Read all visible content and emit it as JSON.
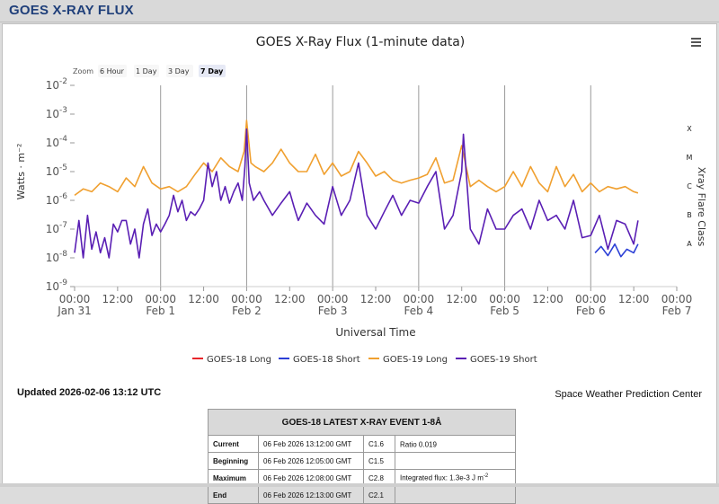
{
  "page": {
    "header_title": "GOES X-RAY FLUX"
  },
  "chart_data": {
    "type": "line",
    "title": "GOES X-Ray Flux (1-minute data)",
    "xlabel": "Universal Time",
    "ylabel": "Watts · m⁻²",
    "y2label": "Xray Flare Class",
    "yscale": "log",
    "ylim": [
      1e-09,
      0.01
    ],
    "xlim": [
      0,
      7
    ],
    "x_unit": "days since 2026-01-31 00:00 UTC",
    "y_ticks": [
      {
        "value": 1e-09,
        "base": "10",
        "exp": "-9"
      },
      {
        "value": 1e-08,
        "base": "10",
        "exp": "-8"
      },
      {
        "value": 1e-07,
        "base": "10",
        "exp": "-7"
      },
      {
        "value": 1e-06,
        "base": "10",
        "exp": "-6"
      },
      {
        "value": 1e-05,
        "base": "10",
        "exp": "-5"
      },
      {
        "value": 0.0001,
        "base": "10",
        "exp": "-4"
      },
      {
        "value": 0.001,
        "base": "10",
        "exp": "-3"
      },
      {
        "value": 0.01,
        "base": "10",
        "exp": "-2"
      }
    ],
    "x_ticks": [
      {
        "x": 0,
        "time": "00:00",
        "date": "Jan 31"
      },
      {
        "x": 0.5,
        "time": "12:00",
        "date": ""
      },
      {
        "x": 1,
        "time": "00:00",
        "date": "Feb 1"
      },
      {
        "x": 1.5,
        "time": "12:00",
        "date": ""
      },
      {
        "x": 2,
        "time": "00:00",
        "date": "Feb 2"
      },
      {
        "x": 2.5,
        "time": "12:00",
        "date": ""
      },
      {
        "x": 3,
        "time": "00:00",
        "date": "Feb 3"
      },
      {
        "x": 3.5,
        "time": "12:00",
        "date": ""
      },
      {
        "x": 4,
        "time": "00:00",
        "date": "Feb 4"
      },
      {
        "x": 4.5,
        "time": "12:00",
        "date": ""
      },
      {
        "x": 5,
        "time": "00:00",
        "date": "Feb 5"
      },
      {
        "x": 5.5,
        "time": "12:00",
        "date": ""
      },
      {
        "x": 6,
        "time": "00:00",
        "date": "Feb 6"
      },
      {
        "x": 6.5,
        "time": "12:00",
        "date": ""
      },
      {
        "x": 7,
        "time": "00:00",
        "date": "Feb 7"
      }
    ],
    "flare_classes": [
      {
        "label": "X",
        "value": 0.000316
      },
      {
        "label": "M",
        "value": 3.16e-05
      },
      {
        "label": "C",
        "value": 3.16e-06
      },
      {
        "label": "B",
        "value": 3.16e-07
      },
      {
        "label": "A",
        "value": 3.16e-08
      }
    ],
    "zoom": {
      "label": "Zoom",
      "options": [
        "6 Hour",
        "1 Day",
        "3 Day",
        "7 Day"
      ],
      "selected": "7 Day"
    },
    "legend_position": "bottom",
    "grid": "vertical-daily",
    "series": [
      {
        "name": "GOES-18 Long",
        "color": "#e8262b",
        "x": [],
        "y": []
      },
      {
        "name": "GOES-18 Short",
        "color": "#2b3fd6",
        "x": [
          6.05,
          6.12,
          6.2,
          6.28,
          6.35,
          6.42,
          6.5,
          6.55
        ],
        "y": [
          1.5e-08,
          2.5e-08,
          1.2e-08,
          3e-08,
          1.1e-08,
          2e-08,
          1.5e-08,
          3e-08
        ]
      },
      {
        "name": "GOES-19 Long",
        "color": "#f0a030",
        "x": [
          0,
          0.1,
          0.2,
          0.3,
          0.4,
          0.5,
          0.6,
          0.7,
          0.8,
          0.9,
          1.0,
          1.1,
          1.2,
          1.3,
          1.4,
          1.5,
          1.6,
          1.7,
          1.8,
          1.9,
          1.97,
          2.0,
          2.05,
          2.1,
          2.2,
          2.3,
          2.4,
          2.5,
          2.6,
          2.7,
          2.8,
          2.9,
          3.0,
          3.1,
          3.2,
          3.3,
          3.4,
          3.5,
          3.6,
          3.7,
          3.8,
          3.9,
          4.0,
          4.1,
          4.2,
          4.3,
          4.4,
          4.5,
          4.6,
          4.7,
          4.8,
          4.9,
          5.0,
          5.1,
          5.2,
          5.3,
          5.4,
          5.5,
          5.6,
          5.7,
          5.8,
          5.9,
          6.0,
          6.1,
          6.2,
          6.3,
          6.4,
          6.5,
          6.55
        ],
        "y": [
          1.5e-06,
          2.5e-06,
          2e-06,
          4e-06,
          3e-06,
          2e-06,
          6e-06,
          3e-06,
          1.5e-05,
          4e-06,
          2.5e-06,
          3e-06,
          2e-06,
          3e-06,
          8e-06,
          2e-05,
          1e-05,
          3e-05,
          1.5e-05,
          1e-05,
          5e-05,
          0.0006,
          2e-05,
          1.5e-05,
          1e-05,
          2e-05,
          6e-05,
          2e-05,
          1e-05,
          1e-05,
          4e-05,
          8e-06,
          2e-05,
          7e-06,
          1e-05,
          5e-05,
          2e-05,
          7e-06,
          1e-05,
          5e-06,
          4e-06,
          5e-06,
          6e-06,
          8e-06,
          3e-05,
          4e-06,
          5e-06,
          8e-05,
          3e-06,
          5e-06,
          3e-06,
          2e-06,
          3e-06,
          1e-05,
          3e-06,
          1.5e-05,
          4e-06,
          2e-06,
          1.5e-05,
          3e-06,
          8e-06,
          2e-06,
          4e-06,
          2e-06,
          3e-06,
          2.5e-06,
          3e-06,
          2e-06,
          1.8e-06
        ]
      },
      {
        "name": "GOES-19 Short",
        "color": "#5a1fb4",
        "x": [
          0,
          0.05,
          0.1,
          0.15,
          0.2,
          0.25,
          0.3,
          0.35,
          0.4,
          0.45,
          0.5,
          0.55,
          0.6,
          0.65,
          0.7,
          0.75,
          0.8,
          0.85,
          0.9,
          0.95,
          1.0,
          1.05,
          1.1,
          1.15,
          1.2,
          1.25,
          1.3,
          1.35,
          1.4,
          1.45,
          1.5,
          1.55,
          1.6,
          1.65,
          1.7,
          1.75,
          1.8,
          1.85,
          1.9,
          1.95,
          1.98,
          2.0,
          2.03,
          2.08,
          2.15,
          2.2,
          2.3,
          2.4,
          2.5,
          2.55,
          2.6,
          2.7,
          2.8,
          2.9,
          3.0,
          3.1,
          3.2,
          3.3,
          3.4,
          3.5,
          3.6,
          3.7,
          3.8,
          3.9,
          4.0,
          4.1,
          4.2,
          4.3,
          4.4,
          4.5,
          4.52,
          4.6,
          4.7,
          4.8,
          4.9,
          5.0,
          5.1,
          5.2,
          5.3,
          5.4,
          5.5,
          5.6,
          5.7,
          5.8,
          5.9,
          6.0,
          6.1,
          6.2,
          6.3,
          6.4,
          6.5,
          6.55
        ],
        "y": [
          1.5e-08,
          2e-07,
          1e-08,
          3e-07,
          2e-08,
          8e-08,
          1.5e-08,
          5e-08,
          1e-08,
          1.5e-07,
          8e-08,
          2e-07,
          2e-07,
          3e-08,
          1e-07,
          1e-08,
          1.5e-07,
          5e-07,
          6e-08,
          1.5e-07,
          8e-08,
          1.5e-07,
          3e-07,
          1.5e-06,
          4e-07,
          1e-06,
          2e-07,
          4e-07,
          3e-07,
          5e-07,
          1e-06,
          2e-05,
          3e-06,
          1e-05,
          1e-06,
          3e-06,
          8e-07,
          2e-06,
          4e-06,
          1e-06,
          1.5e-05,
          0.0003,
          4e-06,
          1e-06,
          2e-06,
          1e-06,
          3e-07,
          8e-07,
          2e-06,
          6e-07,
          2e-07,
          8e-07,
          3e-07,
          1.5e-07,
          3e-06,
          3e-07,
          1e-06,
          2e-05,
          3e-07,
          1e-07,
          4e-07,
          1.5e-06,
          3e-07,
          1e-06,
          8e-07,
          3e-06,
          1e-05,
          1e-07,
          3e-07,
          1e-05,
          0.0002,
          1e-07,
          3e-08,
          5e-07,
          1e-07,
          1e-07,
          3e-07,
          5e-07,
          1e-07,
          1e-06,
          2e-07,
          3e-07,
          1e-07,
          1e-06,
          5e-08,
          6e-08,
          3e-07,
          2e-08,
          2e-07,
          1.5e-07,
          3e-08,
          2e-07
        ]
      }
    ]
  },
  "updated": "Updated 2026-02-06 13:12 UTC",
  "provider": "Space Weather Prediction Center",
  "event_table": {
    "title": "GOES-18 LATEST X-RAY EVENT 1-8Å",
    "rows": [
      {
        "label": "Current",
        "time": "06 Feb 2026 13:12:00 GMT",
        "class": "C1.6",
        "note": "Ratio 0.019",
        "note_sup": ""
      },
      {
        "label": "Beginning",
        "time": "06 Feb 2026 12:05:00 GMT",
        "class": "C1.5",
        "note": "",
        "note_sup": ""
      },
      {
        "label": "Maximum",
        "time": "06 Feb 2026 12:08:00 GMT",
        "class": "C2.8",
        "note": "Integrated flux: 1.3e-3 J m",
        "note_sup": "-2"
      },
      {
        "label": "End",
        "time": "06 Feb 2026 12:13:00 GMT",
        "class": "C2.1",
        "note": "",
        "note_sup": ""
      }
    ]
  }
}
